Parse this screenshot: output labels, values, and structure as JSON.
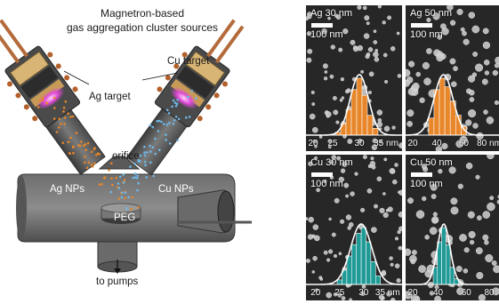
{
  "schematic": {
    "title_line1": "Magnetron-based",
    "title_line2": "gas aggregation cluster sources",
    "cu_target": "Cu target",
    "ag_target": "Ag target",
    "orifice": "orifice",
    "ag_nps": "Ag NPs",
    "cu_nps": "Cu NPs",
    "peg": "PEG",
    "to_pumps": "to pumps"
  },
  "colors": {
    "ag": "#e8862a",
    "cu": "#1f9a96",
    "plasma": "#e04ad8"
  },
  "chart_data": [
    {
      "type": "bar",
      "label": "Ag 30 nm",
      "scale": "100 nm",
      "color": "#e8862a",
      "xlim": [
        20,
        38
      ],
      "ticks": [
        20,
        25,
        30,
        35
      ],
      "tick_labels": [
        "20",
        "25",
        "30",
        "35 nm"
      ],
      "bins": [
        {
          "x": 26,
          "v": 0.05
        },
        {
          "x": 27,
          "v": 0.2
        },
        {
          "x": 28,
          "v": 0.45
        },
        {
          "x": 29,
          "v": 0.8
        },
        {
          "x": 30,
          "v": 1.0
        },
        {
          "x": 31,
          "v": 0.7
        },
        {
          "x": 32,
          "v": 0.35
        },
        {
          "x": 33,
          "v": 0.12
        }
      ],
      "fit": {
        "mean": 30,
        "sd": 1.7
      }
    },
    {
      "type": "bar",
      "label": "Ag 50 nm",
      "scale": "100 nm",
      "color": "#e8862a",
      "xlim": [
        17,
        88
      ],
      "ticks": [
        20,
        40,
        60,
        80
      ],
      "tick_labels": [
        "20",
        "40",
        "60",
        "80 nm"
      ],
      "bins": [
        {
          "x": 36,
          "v": 0.3
        },
        {
          "x": 40,
          "v": 0.8
        },
        {
          "x": 44,
          "v": 1.0
        },
        {
          "x": 48,
          "v": 0.85
        },
        {
          "x": 52,
          "v": 0.6
        },
        {
          "x": 56,
          "v": 0.35
        },
        {
          "x": 60,
          "v": 0.15
        }
      ],
      "fit": {
        "mean": 45,
        "sd": 7
      }
    },
    {
      "type": "bar",
      "label": "Cu 30 nm",
      "scale": "100 nm",
      "color": "#1f9a96",
      "xlim": [
        18,
        38
      ],
      "ticks": [
        20,
        25,
        30,
        35
      ],
      "tick_labels": [
        "20",
        "25",
        "30",
        "35 nm"
      ],
      "bins": [
        {
          "x": 25,
          "v": 0.08
        },
        {
          "x": 26,
          "v": 0.25
        },
        {
          "x": 27,
          "v": 0.5
        },
        {
          "x": 28,
          "v": 0.7
        },
        {
          "x": 29,
          "v": 0.9
        },
        {
          "x": 30,
          "v": 1.0
        },
        {
          "x": 31,
          "v": 0.75
        },
        {
          "x": 32,
          "v": 0.4
        },
        {
          "x": 33,
          "v": 0.15
        }
      ],
      "fit": {
        "mean": 29.5,
        "sd": 2.2
      }
    },
    {
      "type": "bar",
      "label": "Cu 50 nm",
      "scale": "100 nm",
      "color": "#1f9a96",
      "xlim": [
        17,
        85
      ],
      "ticks": [
        20,
        40,
        60,
        80
      ],
      "tick_labels": [
        "20",
        "40",
        "60",
        "80"
      ],
      "bins": [
        {
          "x": 38,
          "v": 0.3
        },
        {
          "x": 41,
          "v": 0.75
        },
        {
          "x": 44,
          "v": 1.0
        },
        {
          "x": 47,
          "v": 0.7
        },
        {
          "x": 50,
          "v": 0.3
        },
        {
          "x": 53,
          "v": 0.1
        }
      ],
      "fit": {
        "mean": 44,
        "sd": 4.5
      }
    }
  ]
}
